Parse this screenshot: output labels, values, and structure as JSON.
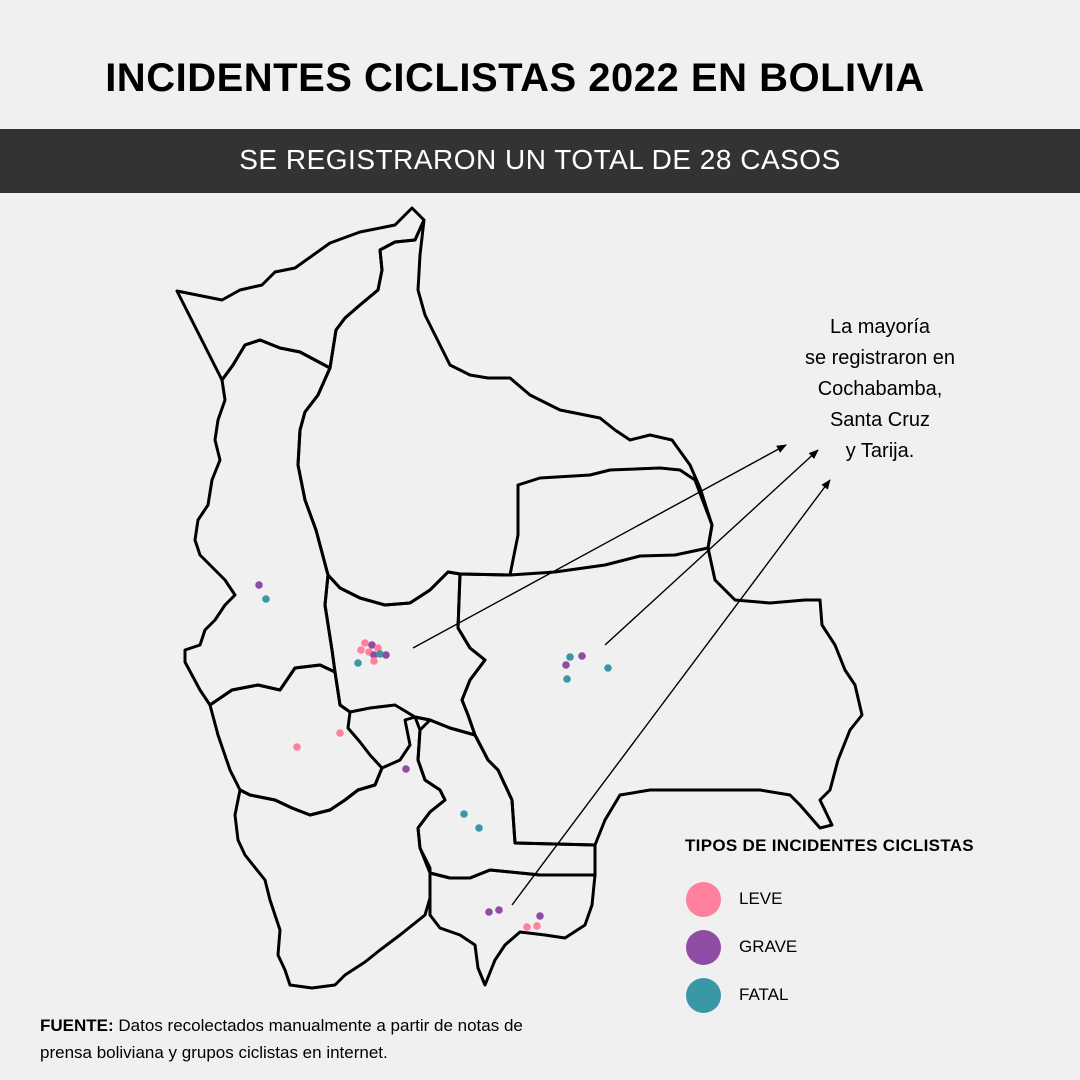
{
  "title": "INCIDENTES CICLISTAS 2022 EN BOLIVIA",
  "subtitle": "SE REGISTRARON UN TOTAL DE 28 CASOS",
  "annotation": [
    "La mayoría",
    "se registraron en",
    "Cochabamba,",
    "Santa Cruz",
    "y Tarija."
  ],
  "legend": {
    "title": "TIPOS DE INCIDENTES CICLISTAS",
    "items": [
      {
        "label": "LEVE",
        "color": "#ff7f9c"
      },
      {
        "label": "GRAVE",
        "color": "#8e4ca5"
      },
      {
        "label": "FATAL",
        "color": "#3a97a5"
      }
    ]
  },
  "source": {
    "label": "FUENTE:",
    "text": "Datos recolectados manualmente a partir de notas de prensa boliviana y grupos ciclistas en internet."
  },
  "colors": {
    "banner": "#333333",
    "background": "#f0f0f0",
    "leve": "#ff7f9c",
    "grave": "#8e4ca5",
    "fatal": "#3a97a5"
  }
}
